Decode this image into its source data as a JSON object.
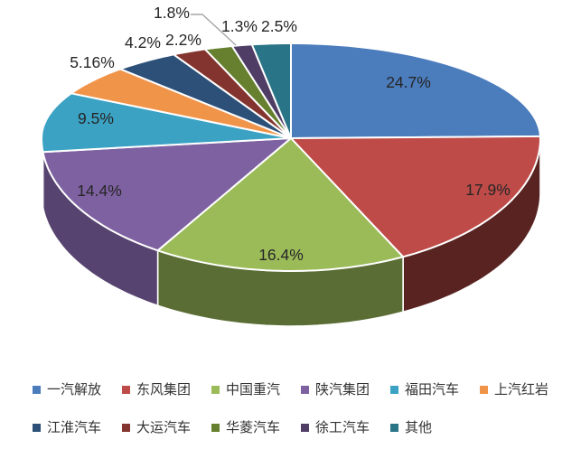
{
  "chart_data": {
    "type": "pie",
    "projection": "3d",
    "title": "",
    "slices": [
      {
        "label": "一汽解放",
        "value": 24.7,
        "display": "24.7%",
        "color": "#4B7CBC",
        "label_placement": "inside"
      },
      {
        "label": "东风集团",
        "value": 17.9,
        "display": "17.9%",
        "color": "#BE4B48",
        "label_placement": "inside"
      },
      {
        "label": "中国重汽",
        "value": 16.4,
        "display": "16.4%",
        "color": "#9BBB59",
        "label_placement": "inside"
      },
      {
        "label": "陕汽集团",
        "value": 14.4,
        "display": "14.4%",
        "color": "#7E61A1",
        "label_placement": "inside"
      },
      {
        "label": "福田汽车",
        "value": 9.5,
        "display": "9.5%",
        "color": "#3BA2C4",
        "label_placement": "inside"
      },
      {
        "label": "上汽红岩",
        "value": 5.16,
        "display": "5.16%",
        "color": "#F0944A",
        "label_placement": "outside"
      },
      {
        "label": "江淮汽车",
        "value": 4.2,
        "display": "4.2%",
        "color": "#2C5078",
        "label_placement": "outside"
      },
      {
        "label": "大运汽车",
        "value": 2.2,
        "display": "2.2%",
        "color": "#84342F",
        "label_placement": "outside"
      },
      {
        "label": "华菱汽车",
        "value": 1.8,
        "display": "1.8%",
        "color": "#66802F",
        "label_placement": "outside",
        "leader_line": true
      },
      {
        "label": "徐工汽车",
        "value": 1.3,
        "display": "1.3%",
        "color": "#4F3D66",
        "label_placement": "outside"
      },
      {
        "label": "其他",
        "value": 2.5,
        "display": "2.5%",
        "color": "#2A7487",
        "label_placement": "outside"
      }
    ],
    "start_angle_deg": 0,
    "direction": "clockwise",
    "legend_position": "bottom",
    "legend_row_lengths": [
      6,
      5
    ],
    "label_color": "#262626",
    "legend_text_color": "#333333",
    "leader_line_color": "#A6A6A6",
    "slice_border_color": "#FFFFFF",
    "background": "#FFFFFF"
  }
}
